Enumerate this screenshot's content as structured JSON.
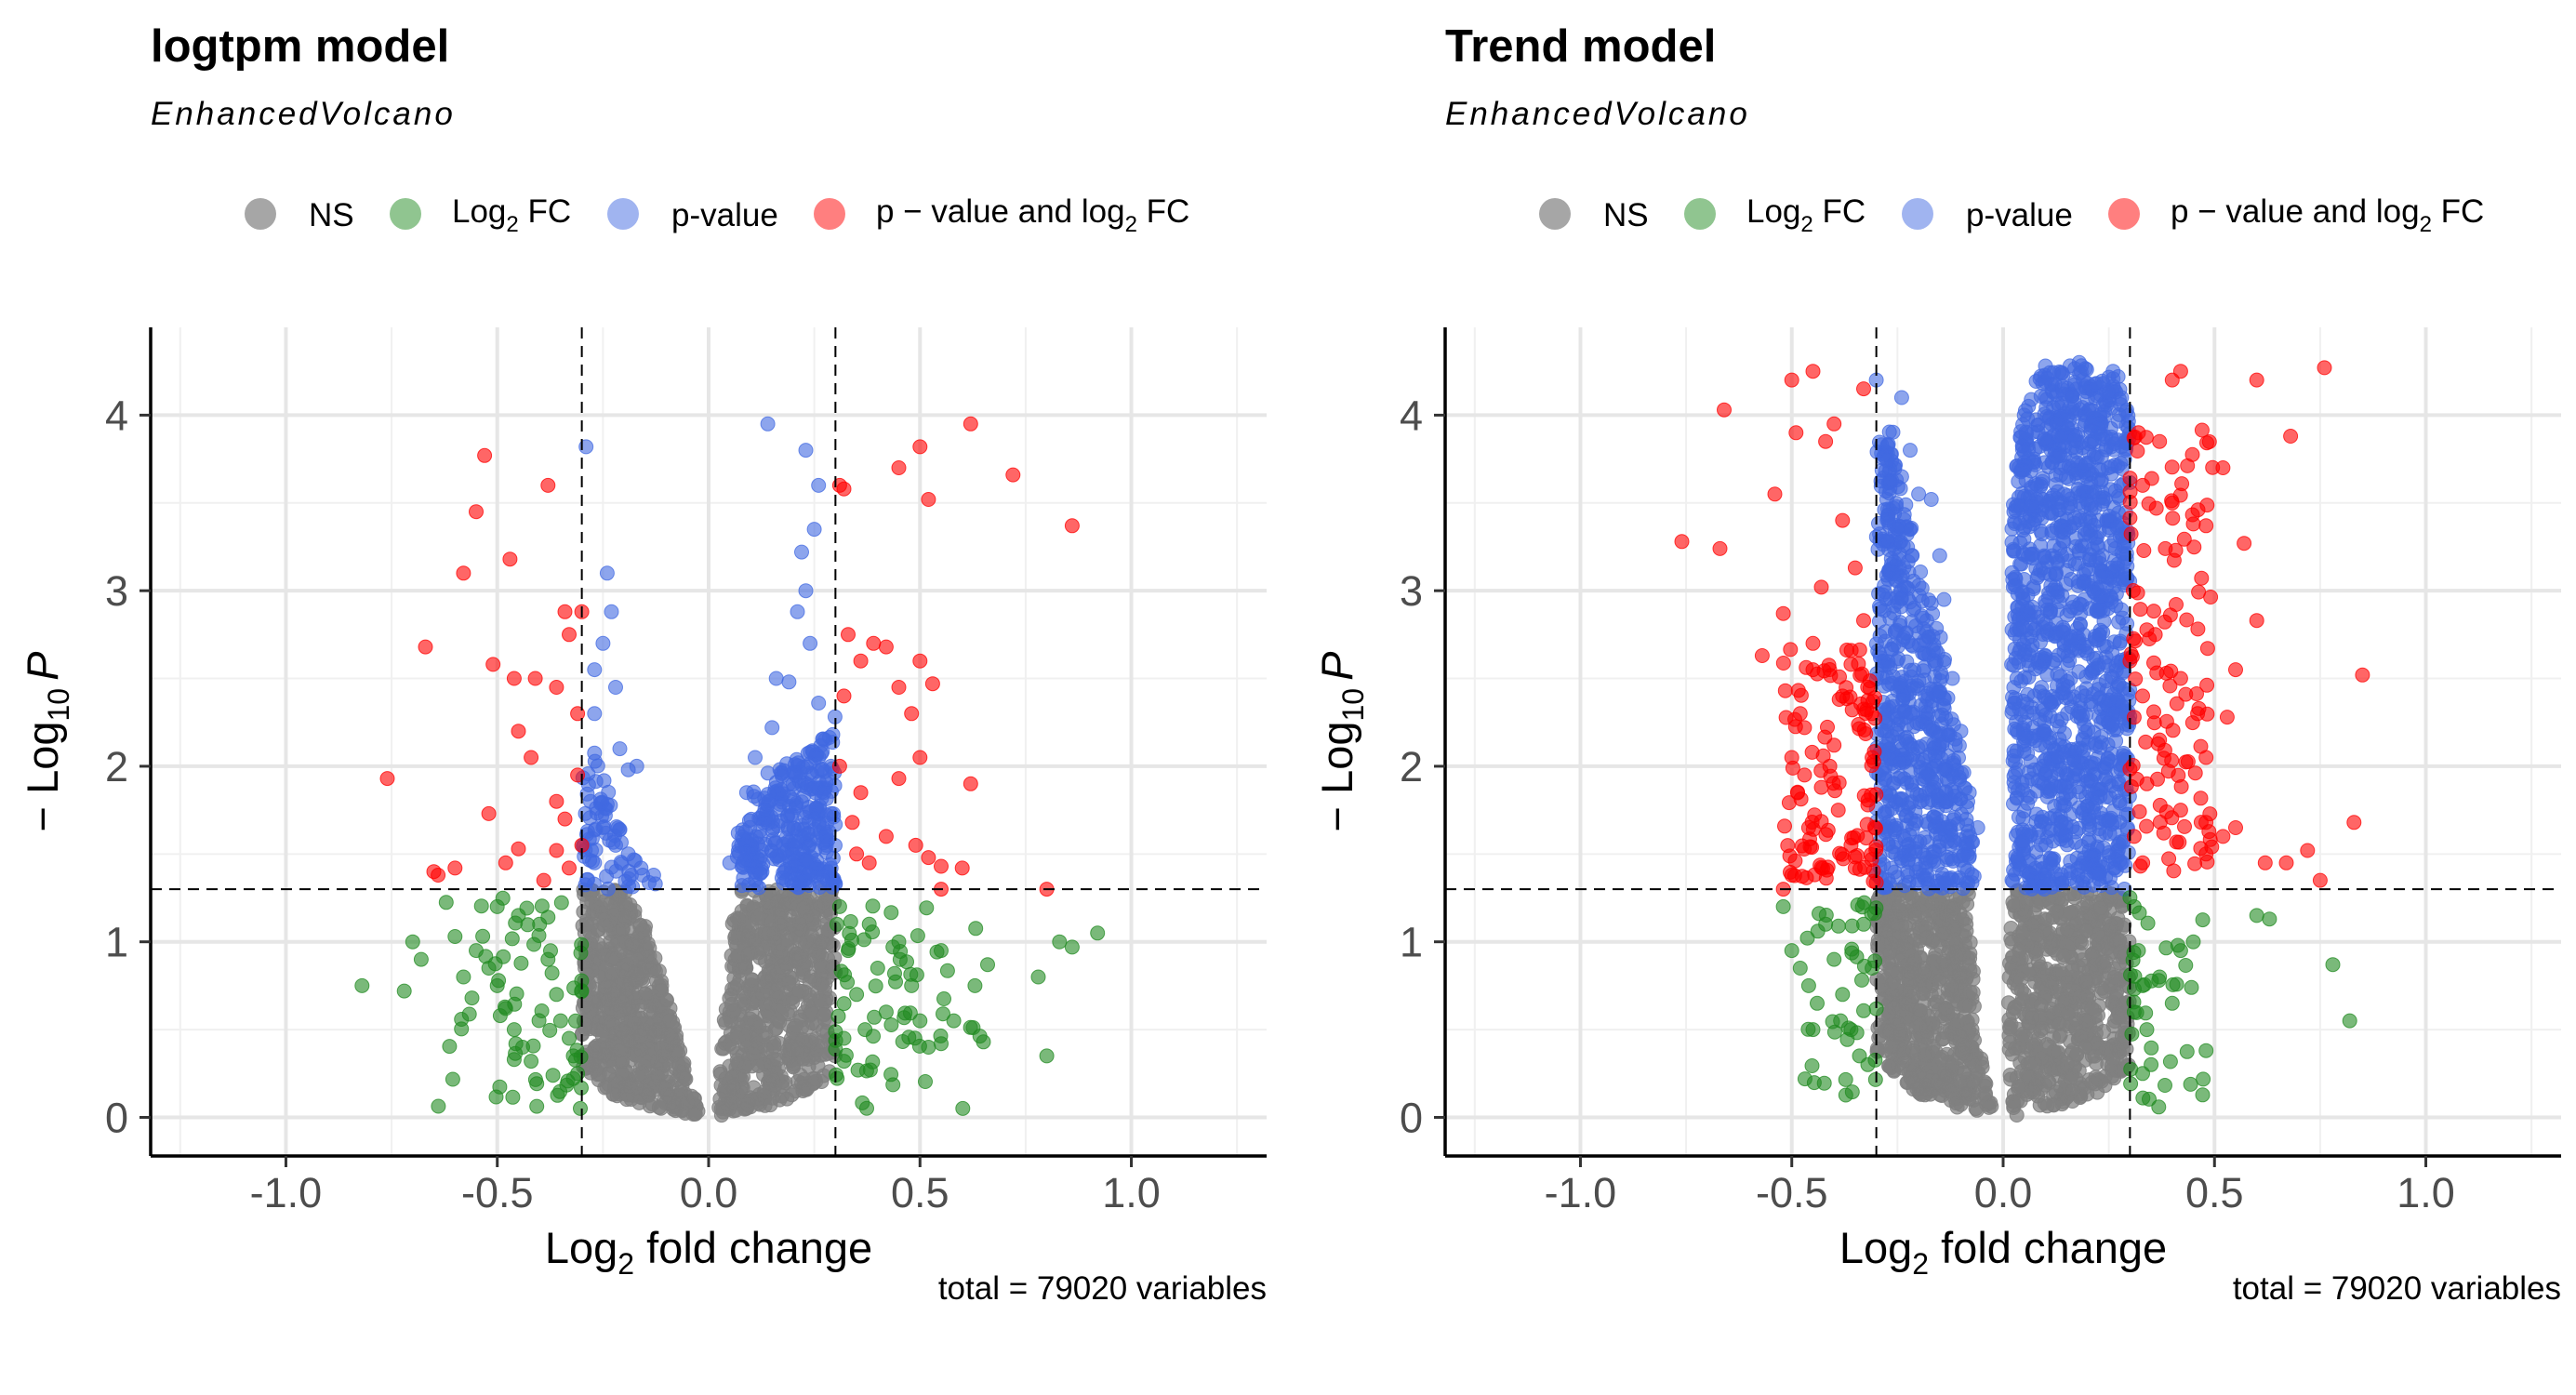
{
  "legend": {
    "items": [
      {
        "key": "ns",
        "label": "NS",
        "color": "#808080"
      },
      {
        "key": "fc",
        "label_main": "Log",
        "label_sub": "2",
        "label_tail": " FC",
        "color": "#228B22"
      },
      {
        "key": "p",
        "label": "p-value",
        "color": "#4169E1"
      },
      {
        "key": "pfc",
        "label_main": "p − value and log",
        "label_sub": "2",
        "label_tail": " FC",
        "color": "#FF0000"
      }
    ]
  },
  "axes": {
    "xlabel_main": "Log",
    "xlabel_sub": "2",
    "xlabel_tail": " fold change",
    "ylabel_prefix": "− Log",
    "ylabel_sub": "10",
    "ylabel_tail": "P",
    "xticks": [
      "-1.0",
      "-0.5",
      "0.0",
      "0.5",
      "1.0"
    ],
    "yticks": [
      "0",
      "1",
      "2",
      "3",
      "4"
    ]
  },
  "chart_data": [
    {
      "type": "scatter",
      "title": "logtpm model",
      "subtitle": "EnhancedVolcano",
      "caption": "total = 79020 variables",
      "xlabel": "Log2 fold change",
      "ylabel": "-Log10 P",
      "xlim": [
        -1.32,
        1.32
      ],
      "ylim": [
        -0.22,
        4.5
      ],
      "grid": true,
      "legend_position": "top",
      "fc_cutoff": 0.3,
      "p_cutoff_log10": 1.3,
      "series_colors": {
        "NS": "#808080",
        "Log2 FC": "#228B22",
        "p-value": "#4169E1",
        "p - value and log2 FC": "#FF0000"
      },
      "red_points": [
        [
          -0.76,
          1.93
        ],
        [
          -0.67,
          2.68
        ],
        [
          -0.58,
          3.1
        ],
        [
          -0.55,
          3.45
        ],
        [
          -0.53,
          3.77
        ],
        [
          -0.51,
          2.58
        ],
        [
          -0.47,
          3.18
        ],
        [
          -0.52,
          1.73
        ],
        [
          -0.46,
          2.5
        ],
        [
          -0.45,
          2.2
        ],
        [
          -0.42,
          2.05
        ],
        [
          -0.38,
          3.6
        ],
        [
          -0.36,
          2.45
        ],
        [
          -0.34,
          2.88
        ],
        [
          -0.33,
          2.75
        ],
        [
          -0.3,
          2.88
        ],
        [
          -0.31,
          1.95
        ],
        [
          -0.3,
          1.55
        ],
        [
          -0.34,
          1.7
        ],
        [
          -0.33,
          1.42
        ],
        [
          -0.36,
          1.52
        ],
        [
          -0.39,
          1.35
        ],
        [
          -0.45,
          1.53
        ],
        [
          -0.48,
          1.45
        ],
        [
          -0.64,
          1.38
        ],
        [
          -0.65,
          1.4
        ],
        [
          -0.6,
          1.42
        ],
        [
          -0.41,
          2.5
        ],
        [
          -0.31,
          2.3
        ],
        [
          -0.36,
          1.8
        ],
        [
          0.31,
          3.6
        ],
        [
          0.32,
          3.58
        ],
        [
          0.45,
          3.7
        ],
        [
          0.5,
          3.82
        ],
        [
          0.52,
          3.52
        ],
        [
          0.62,
          3.95
        ],
        [
          0.72,
          3.66
        ],
        [
          0.86,
          3.37
        ],
        [
          0.33,
          2.75
        ],
        [
          0.36,
          2.6
        ],
        [
          0.42,
          2.68
        ],
        [
          0.45,
          2.45
        ],
        [
          0.48,
          2.3
        ],
        [
          0.39,
          2.7
        ],
        [
          0.5,
          2.6
        ],
        [
          0.5,
          2.05
        ],
        [
          0.45,
          1.93
        ],
        [
          0.36,
          1.85
        ],
        [
          0.34,
          1.68
        ],
        [
          0.42,
          1.6
        ],
        [
          0.38,
          1.45
        ],
        [
          0.49,
          1.55
        ],
        [
          0.52,
          1.48
        ],
        [
          0.62,
          1.9
        ],
        [
          0.55,
          1.43
        ],
        [
          0.6,
          1.42
        ],
        [
          0.55,
          1.3
        ],
        [
          0.8,
          1.3
        ],
        [
          0.32,
          2.4
        ],
        [
          0.31,
          2.0
        ],
        [
          0.35,
          1.5
        ],
        [
          0.53,
          2.47
        ]
      ],
      "blue_points": [
        [
          -0.29,
          3.82
        ],
        [
          -0.24,
          3.1
        ],
        [
          -0.23,
          2.88
        ],
        [
          -0.25,
          2.7
        ],
        [
          -0.27,
          2.55
        ],
        [
          -0.22,
          2.45
        ],
        [
          -0.27,
          2.3
        ],
        [
          -0.21,
          2.1
        ],
        [
          -0.19,
          1.98
        ],
        [
          -0.17,
          2.0
        ],
        [
          -0.25,
          1.65
        ],
        [
          -0.22,
          1.55
        ],
        [
          -0.27,
          1.45
        ],
        [
          -0.19,
          1.5
        ],
        [
          -0.16,
          1.42
        ],
        [
          -0.13,
          1.38
        ],
        [
          0.14,
          3.95
        ],
        [
          0.23,
          3.8
        ],
        [
          0.26,
          3.6
        ],
        [
          0.25,
          3.35
        ],
        [
          0.22,
          3.22
        ],
        [
          0.23,
          3.0
        ],
        [
          0.21,
          2.88
        ],
        [
          0.24,
          2.7
        ],
        [
          0.16,
          2.5
        ],
        [
          0.19,
          2.48
        ],
        [
          0.26,
          2.36
        ],
        [
          0.15,
          2.22
        ],
        [
          0.11,
          2.05
        ],
        [
          0.09,
          1.85
        ],
        [
          0.07,
          1.62
        ],
        [
          0.05,
          1.45
        ]
      ],
      "blue_band": [
        [
          -0.3,
          1.3
        ],
        [
          -0.3,
          1.98
        ],
        [
          -0.27,
          2.08
        ],
        [
          -0.2,
          1.62
        ],
        [
          -0.15,
          1.38
        ],
        [
          -0.11,
          1.3
        ]
      ],
      "blue_band_right": [
        [
          0.06,
          1.3
        ],
        [
          0.06,
          1.45
        ],
        [
          0.1,
          1.85
        ],
        [
          0.15,
          2.0
        ],
        [
          0.22,
          2.05
        ],
        [
          0.28,
          2.2
        ],
        [
          0.3,
          2.35
        ],
        [
          0.3,
          1.3
        ]
      ],
      "green_points": [
        [
          -0.82,
          0.75
        ],
        [
          -0.7,
          1.0
        ],
        [
          -0.68,
          0.9
        ],
        [
          -0.72,
          0.72
        ],
        [
          -0.6,
          1.03
        ],
        [
          -0.55,
          0.95
        ],
        [
          -0.52,
          0.85
        ],
        [
          -0.5,
          0.75
        ],
        [
          -0.48,
          0.62
        ],
        [
          -0.46,
          0.5
        ],
        [
          -0.44,
          0.4
        ],
        [
          -0.42,
          0.32
        ],
        [
          -0.46,
          0.33
        ],
        [
          -0.4,
          1.1
        ],
        [
          -0.38,
          0.9
        ],
        [
          -0.36,
          0.7
        ],
        [
          -0.35,
          0.55
        ],
        [
          -0.33,
          0.45
        ],
        [
          -0.32,
          0.35
        ],
        [
          -0.31,
          0.25
        ],
        [
          -0.56,
          0.68
        ],
        [
          -0.58,
          0.8
        ],
        [
          -0.5,
          1.2
        ],
        [
          -0.45,
          1.15
        ],
        [
          0.31,
          1.2
        ],
        [
          0.33,
          0.95
        ],
        [
          0.35,
          0.7
        ],
        [
          0.37,
          0.5
        ],
        [
          0.4,
          0.85
        ],
        [
          0.42,
          0.6
        ],
        [
          0.45,
          1.0
        ],
        [
          0.48,
          0.75
        ],
        [
          0.5,
          0.55
        ],
        [
          0.52,
          0.4
        ],
        [
          0.55,
          0.95
        ],
        [
          0.58,
          0.55
        ],
        [
          0.63,
          0.75
        ],
        [
          0.66,
          0.87
        ],
        [
          0.65,
          0.43
        ],
        [
          0.78,
          0.8
        ],
        [
          0.8,
          0.35
        ],
        [
          0.83,
          1.0
        ],
        [
          0.86,
          0.97
        ],
        [
          0.92,
          1.05
        ],
        [
          0.55,
          0.42
        ],
        [
          0.44,
          0.82
        ],
        [
          0.38,
          1.1
        ],
        [
          0.32,
          0.45
        ]
      ],
      "ns_left": [
        [
          -0.3,
          1.3
        ],
        [
          -0.3,
          0.25
        ],
        [
          -0.22,
          0.12
        ],
        [
          -0.12,
          0.05
        ],
        [
          -0.02,
          0.0
        ],
        [
          -0.05,
          0.25
        ],
        [
          -0.1,
          0.7
        ],
        [
          -0.15,
          1.1
        ],
        [
          -0.2,
          1.3
        ]
      ],
      "ns_right": [
        [
          0.02,
          0.0
        ],
        [
          0.1,
          0.04
        ],
        [
          0.22,
          0.12
        ],
        [
          0.3,
          0.25
        ],
        [
          0.3,
          1.3
        ],
        [
          0.06,
          1.3
        ],
        [
          0.05,
          0.9
        ],
        [
          0.03,
          0.4
        ]
      ]
    },
    {
      "type": "scatter",
      "title": "Trend model",
      "subtitle": "EnhancedVolcano",
      "caption": "total = 79020 variables",
      "xlabel": "Log2 fold change",
      "ylabel": "-Log10 P",
      "xlim": [
        -1.32,
        1.32
      ],
      "ylim": [
        -0.22,
        4.5
      ],
      "grid": true,
      "legend_position": "top",
      "fc_cutoff": 0.3,
      "p_cutoff_log10": 1.3,
      "series_colors": {
        "NS": "#808080",
        "Log2 FC": "#228B22",
        "p-value": "#4169E1",
        "p - value and log2 FC": "#FF0000"
      },
      "red_points": [
        [
          -0.76,
          3.28
        ],
        [
          -0.67,
          3.24
        ],
        [
          -0.66,
          4.03
        ],
        [
          -0.57,
          2.63
        ],
        [
          -0.54,
          3.55
        ],
        [
          -0.52,
          2.87
        ],
        [
          -0.5,
          2.05
        ],
        [
          -0.48,
          2.3
        ],
        [
          -0.5,
          4.2
        ],
        [
          -0.49,
          3.9
        ],
        [
          -0.45,
          4.25
        ],
        [
          -0.42,
          3.85
        ],
        [
          -0.4,
          3.95
        ],
        [
          -0.43,
          3.02
        ],
        [
          -0.45,
          2.7
        ],
        [
          -0.46,
          1.65
        ],
        [
          -0.5,
          1.38
        ],
        [
          -0.52,
          1.3
        ],
        [
          -0.47,
          2.22
        ],
        [
          -0.43,
          1.88
        ],
        [
          -0.4,
          2.12
        ],
        [
          -0.38,
          2.4
        ],
        [
          -0.36,
          2.58
        ],
        [
          -0.35,
          3.13
        ],
        [
          -0.33,
          4.15
        ],
        [
          -0.33,
          2.83
        ],
        [
          -0.38,
          3.4
        ],
        [
          -0.41,
          2.0
        ],
        [
          -0.39,
          1.75
        ],
        [
          -0.36,
          1.55
        ],
        [
          -0.35,
          1.42
        ],
        [
          -0.32,
          1.78
        ],
        [
          -0.31,
          2.05
        ],
        [
          -0.45,
          2.55
        ],
        [
          -0.47,
          1.95
        ],
        [
          0.32,
          3.9
        ],
        [
          0.33,
          3.6
        ],
        [
          0.37,
          3.85
        ],
        [
          0.4,
          4.2
        ],
        [
          0.42,
          4.25
        ],
        [
          0.6,
          4.2
        ],
        [
          0.76,
          4.27
        ],
        [
          0.68,
          3.88
        ],
        [
          0.52,
          3.7
        ],
        [
          0.4,
          3.5
        ],
        [
          0.45,
          3.38
        ],
        [
          0.48,
          3.37
        ],
        [
          0.57,
          3.27
        ],
        [
          0.6,
          2.83
        ],
        [
          0.55,
          2.55
        ],
        [
          0.36,
          2.75
        ],
        [
          0.42,
          2.5
        ],
        [
          0.46,
          2.3
        ],
        [
          0.48,
          2.05
        ],
        [
          0.53,
          2.28
        ],
        [
          0.37,
          2.15
        ],
        [
          0.34,
          1.9
        ],
        [
          0.38,
          1.62
        ],
        [
          0.42,
          1.75
        ],
        [
          0.48,
          1.5
        ],
        [
          0.52,
          1.6
        ],
        [
          0.55,
          1.65
        ],
        [
          0.62,
          1.45
        ],
        [
          0.67,
          1.45
        ],
        [
          0.72,
          1.52
        ],
        [
          0.75,
          1.35
        ],
        [
          0.83,
          1.68
        ],
        [
          0.85,
          2.52
        ],
        [
          0.31,
          1.6
        ],
        [
          0.33,
          2.4
        ]
      ],
      "blue_points": [
        [
          -0.3,
          4.2
        ],
        [
          -0.24,
          4.1
        ],
        [
          -0.22,
          3.8
        ],
        [
          -0.2,
          3.55
        ],
        [
          -0.24,
          3.65
        ],
        [
          -0.17,
          3.52
        ],
        [
          -0.15,
          3.2
        ],
        [
          -0.14,
          2.95
        ],
        [
          -0.12,
          2.5
        ],
        [
          -0.1,
          2.2
        ],
        [
          -0.08,
          1.85
        ],
        [
          -0.06,
          1.65
        ],
        [
          -0.22,
          3.35
        ],
        [
          -0.26,
          3.1
        ],
        [
          0.05,
          4.0
        ],
        [
          0.06,
          4.05
        ],
        [
          0.1,
          4.28
        ],
        [
          0.18,
          4.3
        ],
        [
          0.26,
          4.25
        ],
        [
          0.28,
          4.1
        ],
        [
          0.29,
          3.8
        ]
      ],
      "blue_band": [
        [
          -0.3,
          1.3
        ],
        [
          -0.3,
          3.85
        ],
        [
          -0.27,
          4.05
        ],
        [
          -0.2,
          3.2
        ],
        [
          -0.14,
          2.7
        ],
        [
          -0.1,
          2.1
        ],
        [
          -0.07,
          1.6
        ],
        [
          -0.06,
          1.3
        ]
      ],
      "blue_band_right": [
        [
          0.02,
          1.3
        ],
        [
          0.02,
          3.4
        ],
        [
          0.04,
          3.95
        ],
        [
          0.08,
          4.22
        ],
        [
          0.18,
          4.3
        ],
        [
          0.27,
          4.25
        ],
        [
          0.3,
          4.05
        ],
        [
          0.3,
          1.3
        ]
      ],
      "green_points": [
        [
          -0.52,
          1.2
        ],
        [
          -0.5,
          0.95
        ],
        [
          -0.48,
          0.85
        ],
        [
          -0.46,
          0.75
        ],
        [
          -0.44,
          0.65
        ],
        [
          -0.42,
          1.1
        ],
        [
          -0.4,
          0.9
        ],
        [
          -0.38,
          0.7
        ],
        [
          -0.36,
          0.5
        ],
        [
          -0.34,
          0.35
        ],
        [
          -0.32,
          0.3
        ],
        [
          -0.31,
          0.85
        ],
        [
          -0.33,
          1.1
        ],
        [
          -0.45,
          0.5
        ],
        [
          0.31,
          1.2
        ],
        [
          0.32,
          0.95
        ],
        [
          0.33,
          0.75
        ],
        [
          0.34,
          0.5
        ],
        [
          0.35,
          0.3
        ],
        [
          0.37,
          0.8
        ],
        [
          0.4,
          0.65
        ],
        [
          0.42,
          0.95
        ],
        [
          0.45,
          1.0
        ],
        [
          0.48,
          0.38
        ],
        [
          0.6,
          1.15
        ],
        [
          0.63,
          1.13
        ],
        [
          0.78,
          0.87
        ],
        [
          0.82,
          0.55
        ],
        [
          0.33,
          0.25
        ],
        [
          0.31,
          0.6
        ]
      ],
      "ns_left": [
        [
          -0.3,
          1.3
        ],
        [
          -0.3,
          0.35
        ],
        [
          -0.22,
          0.15
        ],
        [
          -0.1,
          0.05
        ],
        [
          -0.02,
          0.0
        ],
        [
          -0.05,
          0.3
        ],
        [
          -0.07,
          0.8
        ],
        [
          -0.08,
          1.3
        ]
      ],
      "ns_right": [
        [
          0.02,
          0.0
        ],
        [
          0.12,
          0.06
        ],
        [
          0.22,
          0.12
        ],
        [
          0.3,
          0.3
        ],
        [
          0.3,
          1.3
        ],
        [
          0.02,
          1.3
        ],
        [
          0.01,
          0.5
        ]
      ]
    }
  ]
}
